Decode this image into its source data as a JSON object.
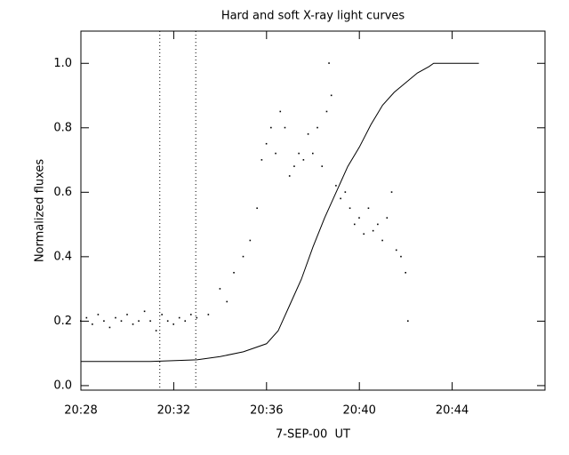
{
  "chart_data": {
    "type": "scatter-line",
    "title": "Hard and soft X-ray light curves",
    "x_label": "7-SEP-00  UT",
    "y_label": "Normalized fluxes",
    "xlim": [
      1228,
      1248
    ],
    "xticks": [
      {
        "value": 1228,
        "label": "20:28"
      },
      {
        "value": 1232,
        "label": "20:32"
      },
      {
        "value": 1236,
        "label": "20:36"
      },
      {
        "value": 1240,
        "label": "20:40"
      },
      {
        "value": 1244,
        "label": "20:44"
      }
    ],
    "ylim": [
      -0.014,
      1.1
    ],
    "yticks": [
      {
        "value": 0,
        "label": "0.0"
      },
      0.2,
      0.4,
      0.6,
      0.8,
      {
        "value": 1,
        "label": "1.0"
      }
    ],
    "markers": [
      1231.4,
      1232.95
    ],
    "series": [
      {
        "style": "line",
        "color": "#000000",
        "x": [
          1228,
          1231,
          1233,
          1234,
          1235,
          1236,
          1236.5,
          1237,
          1237.5,
          1238,
          1238.5,
          1239,
          1239.5,
          1240,
          1240.5,
          1241,
          1241.5,
          1242,
          1242.5,
          1243,
          1243.2,
          1245.15
        ],
        "values": [
          0.075,
          0.075,
          0.08,
          0.09,
          0.105,
          0.13,
          0.17,
          0.25,
          0.33,
          0.43,
          0.52,
          0.6,
          0.68,
          0.74,
          0.81,
          0.87,
          0.91,
          0.94,
          0.97,
          0.99,
          1.0,
          1.0
        ]
      },
      {
        "style": "dots",
        "color": "#000000",
        "x": [
          1228,
          1228.25,
          1228.5,
          1228.75,
          1229,
          1229.25,
          1229.5,
          1229.75,
          1230,
          1230.25,
          1230.5,
          1230.75,
          1231,
          1231.25,
          1231.5,
          1231.75,
          1232,
          1232.25,
          1232.5,
          1232.75,
          1233,
          1233.5,
          1234,
          1234.3,
          1234.6,
          1235,
          1235.3,
          1235.6,
          1235.8,
          1236,
          1236.2,
          1236.4,
          1236.6,
          1236.8,
          1237,
          1237.2,
          1237.4,
          1237.6,
          1237.8,
          1238,
          1238.2,
          1238.4,
          1238.6,
          1238.7,
          1238.8,
          1239,
          1239.2,
          1239.4,
          1239.6,
          1239.8,
          1240,
          1240.2,
          1240.4,
          1240.6,
          1240.8,
          1241,
          1241.2,
          1241.4,
          1241.6,
          1241.8,
          1242,
          1242.1
        ],
        "values": [
          0.2,
          0.21,
          0.19,
          0.22,
          0.2,
          0.18,
          0.21,
          0.2,
          0.22,
          0.19,
          0.2,
          0.23,
          0.2,
          0.17,
          0.22,
          0.2,
          0.19,
          0.21,
          0.2,
          0.22,
          0.21,
          0.22,
          0.3,
          0.26,
          0.35,
          0.4,
          0.45,
          0.55,
          0.7,
          0.75,
          0.8,
          0.72,
          0.85,
          0.8,
          0.65,
          0.68,
          0.72,
          0.7,
          0.78,
          0.72,
          0.8,
          0.68,
          0.85,
          1.0,
          0.9,
          0.62,
          0.58,
          0.6,
          0.55,
          0.5,
          0.52,
          0.47,
          0.55,
          0.48,
          0.5,
          0.45,
          0.52,
          0.6,
          0.42,
          0.4,
          0.35,
          0.2
        ]
      }
    ]
  }
}
